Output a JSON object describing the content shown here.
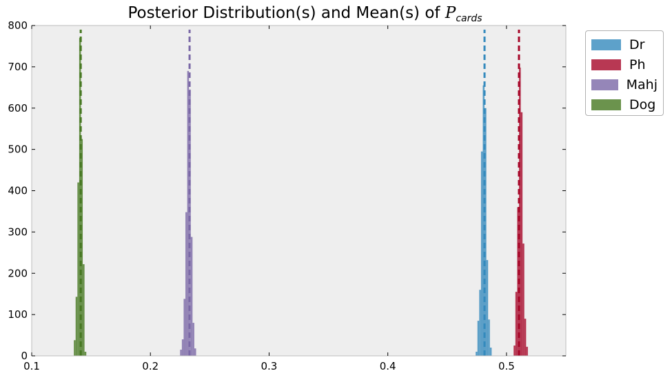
{
  "chart_data": {
    "type": "histogram",
    "title_text": "Posterior Distribution(s) and Mean(s) of ",
    "title_symbol": "P",
    "title_subscript": "cards",
    "xlim": [
      0.1,
      0.55
    ],
    "ylim": [
      0,
      800
    ],
    "xticks": [
      0.1,
      0.2,
      0.3,
      0.4,
      0.5
    ],
    "xtick_labels": [
      "0.1",
      "0.2",
      "0.3",
      "0.4",
      "0.5"
    ],
    "yticks": [
      0,
      100,
      200,
      300,
      400,
      500,
      600,
      700,
      800
    ],
    "ytick_labels": [
      "0",
      "100",
      "200",
      "300",
      "400",
      "500",
      "600",
      "700",
      "800"
    ],
    "grid": false,
    "legend_position": "outside-right-top",
    "series": [
      {
        "name": "Dr",
        "color": "#348ABD",
        "mean": 0.4815,
        "bin_width": 0.0015,
        "bins": [
          {
            "x": 0.474,
            "y": 10
          },
          {
            "x": 0.4755,
            "y": 85
          },
          {
            "x": 0.477,
            "y": 160
          },
          {
            "x": 0.4785,
            "y": 495
          },
          {
            "x": 0.48,
            "y": 655
          },
          {
            "x": 0.4815,
            "y": 600
          },
          {
            "x": 0.483,
            "y": 232
          },
          {
            "x": 0.4845,
            "y": 88
          },
          {
            "x": 0.486,
            "y": 20
          }
        ]
      },
      {
        "name": "Ph",
        "color": "#A60628",
        "mean": 0.5105,
        "bin_width": 0.0015,
        "bins": [
          {
            "x": 0.506,
            "y": 25
          },
          {
            "x": 0.5075,
            "y": 155
          },
          {
            "x": 0.509,
            "y": 360
          },
          {
            "x": 0.5105,
            "y": 698
          },
          {
            "x": 0.512,
            "y": 590
          },
          {
            "x": 0.5135,
            "y": 272
          },
          {
            "x": 0.515,
            "y": 90
          },
          {
            "x": 0.5165,
            "y": 22
          }
        ]
      },
      {
        "name": "Mahj",
        "color": "#7A68A6",
        "mean": 0.233,
        "bin_width": 0.0015,
        "bins": [
          {
            "x": 0.225,
            "y": 15
          },
          {
            "x": 0.2265,
            "y": 40
          },
          {
            "x": 0.228,
            "y": 138
          },
          {
            "x": 0.2295,
            "y": 348
          },
          {
            "x": 0.231,
            "y": 690
          },
          {
            "x": 0.2325,
            "y": 645
          },
          {
            "x": 0.234,
            "y": 288
          },
          {
            "x": 0.2355,
            "y": 80
          },
          {
            "x": 0.237,
            "y": 18
          }
        ]
      },
      {
        "name": "Dog",
        "color": "#467821",
        "mean": 0.1413,
        "bin_width": 0.0015,
        "bins": [
          {
            "x": 0.1355,
            "y": 38
          },
          {
            "x": 0.137,
            "y": 143
          },
          {
            "x": 0.1385,
            "y": 420
          },
          {
            "x": 0.14,
            "y": 770
          },
          {
            "x": 0.1415,
            "y": 525
          },
          {
            "x": 0.143,
            "y": 222
          },
          {
            "x": 0.1445,
            "y": 10
          }
        ]
      }
    ]
  }
}
